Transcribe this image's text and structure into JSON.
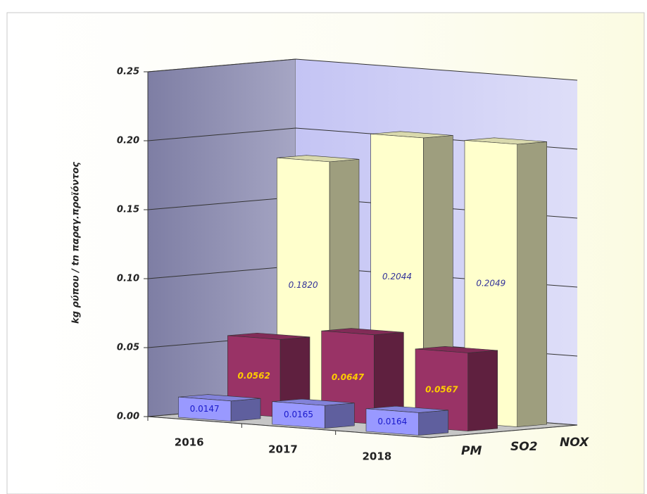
{
  "chart_data": {
    "type": "bar3d",
    "ylabel": "kg ρύπου / tn παραγ.προϊόντος",
    "categories": [
      "2016",
      "2017",
      "2018"
    ],
    "series": [
      {
        "name": "PM",
        "color": "#9999ff",
        "values": [
          0.0147,
          0.0165,
          0.0164
        ],
        "value_labels": [
          "0.0147",
          "0.0165",
          "0.0164"
        ]
      },
      {
        "name": "SO2",
        "color": "#993366",
        "values": [
          0.0562,
          0.0647,
          0.0567
        ],
        "value_labels": [
          "0.0562",
          "0.0647",
          "0.0567"
        ]
      },
      {
        "name": "NOX",
        "color": "#ffffcc",
        "values": [
          0.182,
          0.2044,
          0.2049
        ],
        "value_labels": [
          "0.1820",
          "0.2044",
          "0.2049"
        ]
      }
    ],
    "ylim": [
      0,
      0.25
    ],
    "yticks": [
      {
        "value": 0,
        "label": "0.00"
      },
      {
        "value": 0.05,
        "label": "0.05"
      },
      {
        "value": 0.1,
        "label": "0.10"
      },
      {
        "value": 0.15,
        "label": "0.15"
      },
      {
        "value": 0.2,
        "label": "0.20"
      },
      {
        "value": 0.25,
        "label": "0.25"
      }
    ],
    "grid": true
  }
}
